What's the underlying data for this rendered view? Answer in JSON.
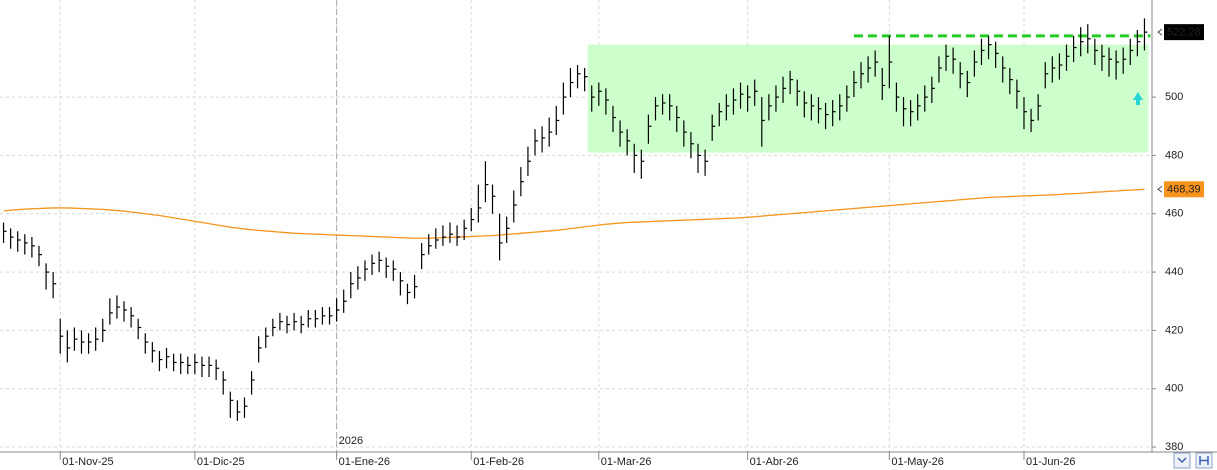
{
  "chart_data": {
    "type": "ohlc",
    "categories": [
      null,
      null,
      null,
      null,
      null,
      null,
      null,
      null,
      "01-Nov-25",
      null,
      null,
      null,
      null,
      null,
      null,
      null,
      null,
      null,
      null,
      null,
      null,
      null,
      null,
      null,
      null,
      null,
      null,
      "01-Dic-25",
      null,
      null,
      null,
      null,
      null,
      null,
      null,
      null,
      null,
      null,
      null,
      null,
      null,
      null,
      null,
      null,
      null,
      null,
      null,
      "01-Ene-26",
      null,
      null,
      null,
      null,
      null,
      null,
      null,
      null,
      null,
      null,
      null,
      null,
      null,
      null,
      null,
      null,
      null,
      null,
      "01-Feb-26",
      null,
      null,
      null,
      null,
      null,
      null,
      null,
      null,
      null,
      null,
      null,
      null,
      null,
      null,
      null,
      null,
      null,
      "01-Mar-26",
      null,
      null,
      null,
      null,
      null,
      null,
      null,
      null,
      null,
      null,
      null,
      null,
      null,
      null,
      null,
      null,
      null,
      null,
      null,
      null,
      "01-Abr-26",
      null,
      null,
      null,
      null,
      null,
      null,
      null,
      null,
      null,
      null,
      null,
      null,
      null,
      null,
      null,
      null,
      null,
      null,
      null,
      "01-May-26",
      null,
      null,
      null,
      null,
      null,
      null,
      null,
      null,
      null,
      null,
      null,
      null,
      null,
      null,
      null,
      null,
      null,
      null,
      "01-Jun-26",
      null,
      null,
      null,
      null,
      null,
      null,
      null,
      null,
      null,
      null,
      null,
      null,
      null,
      null,
      null,
      null,
      null
    ],
    "year_marker": "2026",
    "ohlc": {
      "color": "#000000",
      "high": [
        457,
        455,
        454,
        453,
        452,
        449,
        443,
        440,
        424,
        420,
        421,
        420,
        419,
        421,
        424,
        431,
        432,
        430,
        428,
        424,
        419,
        416,
        413,
        414,
        412,
        412,
        411,
        412,
        411,
        411,
        410,
        406,
        399,
        396,
        397,
        406,
        418,
        421,
        424,
        426,
        425,
        426,
        425,
        427,
        427,
        428,
        428,
        431,
        434,
        440,
        442,
        444,
        446,
        447,
        445,
        444,
        440,
        436,
        439,
        450,
        453,
        455,
        456,
        457,
        456,
        458,
        462,
        470,
        478,
        470,
        460,
        459,
        468,
        476,
        483,
        489,
        490,
        493,
        497,
        505,
        510,
        511,
        510,
        504,
        505,
        503,
        497,
        492,
        489,
        484,
        482,
        494,
        500,
        501,
        501,
        497,
        492,
        488,
        484,
        482,
        494,
        498,
        501,
        503,
        505,
        504,
        506,
        500,
        501,
        504,
        507,
        509,
        506,
        502,
        501,
        500,
        498,
        499,
        501,
        504,
        509,
        512,
        514,
        516,
        510,
        521,
        505,
        500,
        499,
        501,
        504,
        507,
        514,
        518,
        517,
        512,
        509,
        516,
        520,
        521,
        519,
        514,
        510,
        506,
        500,
        496,
        501,
        512,
        514,
        515,
        518,
        521,
        524,
        525,
        520,
        518,
        517,
        516,
        517,
        520,
        523,
        527
      ],
      "low": [
        450,
        448,
        447,
        446,
        445,
        442,
        434,
        431,
        412,
        409,
        413,
        412,
        412,
        413,
        416,
        422,
        424,
        423,
        421,
        417,
        412,
        409,
        406,
        407,
        406,
        405,
        405,
        405,
        404,
        404,
        403,
        398,
        390,
        389,
        390,
        398,
        409,
        414,
        418,
        420,
        419,
        420,
        419,
        421,
        421,
        422,
        422,
        423,
        426,
        431,
        434,
        437,
        439,
        440,
        438,
        437,
        432,
        429,
        431,
        441,
        446,
        448,
        449,
        450,
        449,
        451,
        454,
        457,
        464,
        460,
        444,
        450,
        457,
        466,
        473,
        480,
        481,
        483,
        487,
        494,
        500,
        503,
        502,
        495,
        497,
        494,
        488,
        483,
        480,
        474,
        472,
        484,
        492,
        494,
        492,
        488,
        483,
        479,
        474,
        473,
        485,
        490,
        492,
        494,
        496,
        495,
        497,
        483,
        492,
        495,
        498,
        501,
        497,
        493,
        492,
        491,
        489,
        490,
        492,
        495,
        500,
        503,
        505,
        507,
        499,
        503,
        495,
        490,
        490,
        492,
        495,
        498,
        505,
        509,
        508,
        503,
        500,
        507,
        511,
        513,
        510,
        505,
        501,
        496,
        489,
        488,
        492,
        503,
        505,
        506,
        509,
        512,
        514,
        515,
        511,
        509,
        507,
        506,
        508,
        511,
        514,
        516
      ],
      "close": [
        454,
        452,
        451,
        450,
        449,
        446,
        440,
        436,
        418,
        414,
        417,
        416,
        416,
        417,
        420,
        426,
        428,
        427,
        425,
        421,
        416,
        413,
        410,
        411,
        409,
        409,
        408,
        409,
        408,
        408,
        407,
        403,
        396,
        392,
        394,
        403,
        414,
        418,
        421,
        423,
        422,
        423,
        422,
        424,
        424,
        425,
        425,
        427,
        430,
        436,
        438,
        441,
        443,
        444,
        442,
        441,
        437,
        433,
        435,
        446,
        449,
        451,
        452,
        453,
        452,
        455,
        458,
        462,
        470,
        466,
        450,
        455,
        463,
        471,
        478,
        485,
        486,
        488,
        492,
        500,
        505,
        508,
        507,
        500,
        502,
        499,
        493,
        488,
        485,
        480,
        478,
        490,
        497,
        498,
        497,
        493,
        488,
        484,
        480,
        478,
        490,
        495,
        497,
        499,
        501,
        500,
        502,
        492,
        497,
        500,
        503,
        506,
        502,
        498,
        497,
        496,
        494,
        495,
        497,
        500,
        505,
        508,
        510,
        512,
        504,
        512,
        500,
        496,
        495,
        497,
        500,
        503,
        510,
        514,
        513,
        508,
        505,
        512,
        516,
        518,
        515,
        510,
        506,
        502,
        495,
        492,
        497,
        508,
        510,
        511,
        514,
        517,
        519,
        520,
        516,
        514,
        513,
        512,
        513,
        516,
        519,
        522.28
      ]
    },
    "moving_average": {
      "color": "#f7941d",
      "values": [
        461.0,
        461.2,
        461.4,
        461.6,
        461.7,
        461.8,
        461.9,
        462.0,
        462.0,
        462.0,
        461.9,
        461.8,
        461.7,
        461.6,
        461.5,
        461.3,
        461.1,
        460.9,
        460.6,
        460.3,
        460.0,
        459.7,
        459.4,
        459.0,
        458.6,
        458.2,
        457.8,
        457.4,
        457.0,
        456.6,
        456.2,
        455.8,
        455.4,
        455.1,
        454.8,
        454.5,
        454.3,
        454.1,
        453.9,
        453.7,
        453.5,
        453.3,
        453.2,
        453.1,
        453.0,
        452.9,
        452.8,
        452.7,
        452.6,
        452.5,
        452.4,
        452.3,
        452.2,
        452.1,
        452.0,
        451.9,
        451.8,
        451.7,
        451.6,
        451.6,
        451.6,
        451.7,
        451.8,
        451.9,
        452.0,
        452.1,
        452.2,
        452.3,
        452.4,
        452.5,
        452.7,
        452.9,
        453.1,
        453.3,
        453.5,
        453.7,
        453.9,
        454.1,
        454.3,
        454.6,
        454.9,
        455.2,
        455.5,
        455.8,
        456.1,
        456.4,
        456.6,
        456.8,
        457.0,
        457.1,
        457.2,
        457.3,
        457.4,
        457.5,
        457.6,
        457.7,
        457.8,
        457.9,
        458.0,
        458.1,
        458.2,
        458.3,
        458.4,
        458.5,
        458.6,
        458.8,
        459.0,
        459.2,
        459.4,
        459.6,
        459.8,
        460.0,
        460.2,
        460.4,
        460.6,
        460.8,
        461.0,
        461.2,
        461.4,
        461.6,
        461.8,
        462.0,
        462.2,
        462.4,
        462.6,
        462.8,
        463.0,
        463.2,
        463.4,
        463.6,
        463.8,
        464.0,
        464.2,
        464.4,
        464.6,
        464.8,
        465.0,
        465.2,
        465.4,
        465.6,
        465.7,
        465.8,
        465.9,
        466.0,
        466.1,
        466.2,
        466.3,
        466.4,
        466.5,
        466.6,
        466.8,
        466.9,
        467.0,
        467.2,
        467.4,
        467.5,
        467.7,
        467.8,
        468.0,
        468.1,
        468.25,
        468.39
      ]
    },
    "range_box": [
      481,
      518
    ],
    "range_box_color": "#ccffcc",
    "resistance": 521,
    "resistance_color": "#22cc22",
    "price_tags": [
      {
        "value": 522.28,
        "label": "522,28",
        "color": "#000000"
      },
      {
        "value": 468.39,
        "label": "468,39",
        "color": "#f7941d"
      }
    ],
    "ylim": [
      378.3,
      533.3
    ],
    "yticks": [
      380,
      400,
      420,
      440,
      460,
      480,
      500
    ],
    "grid": true
  }
}
